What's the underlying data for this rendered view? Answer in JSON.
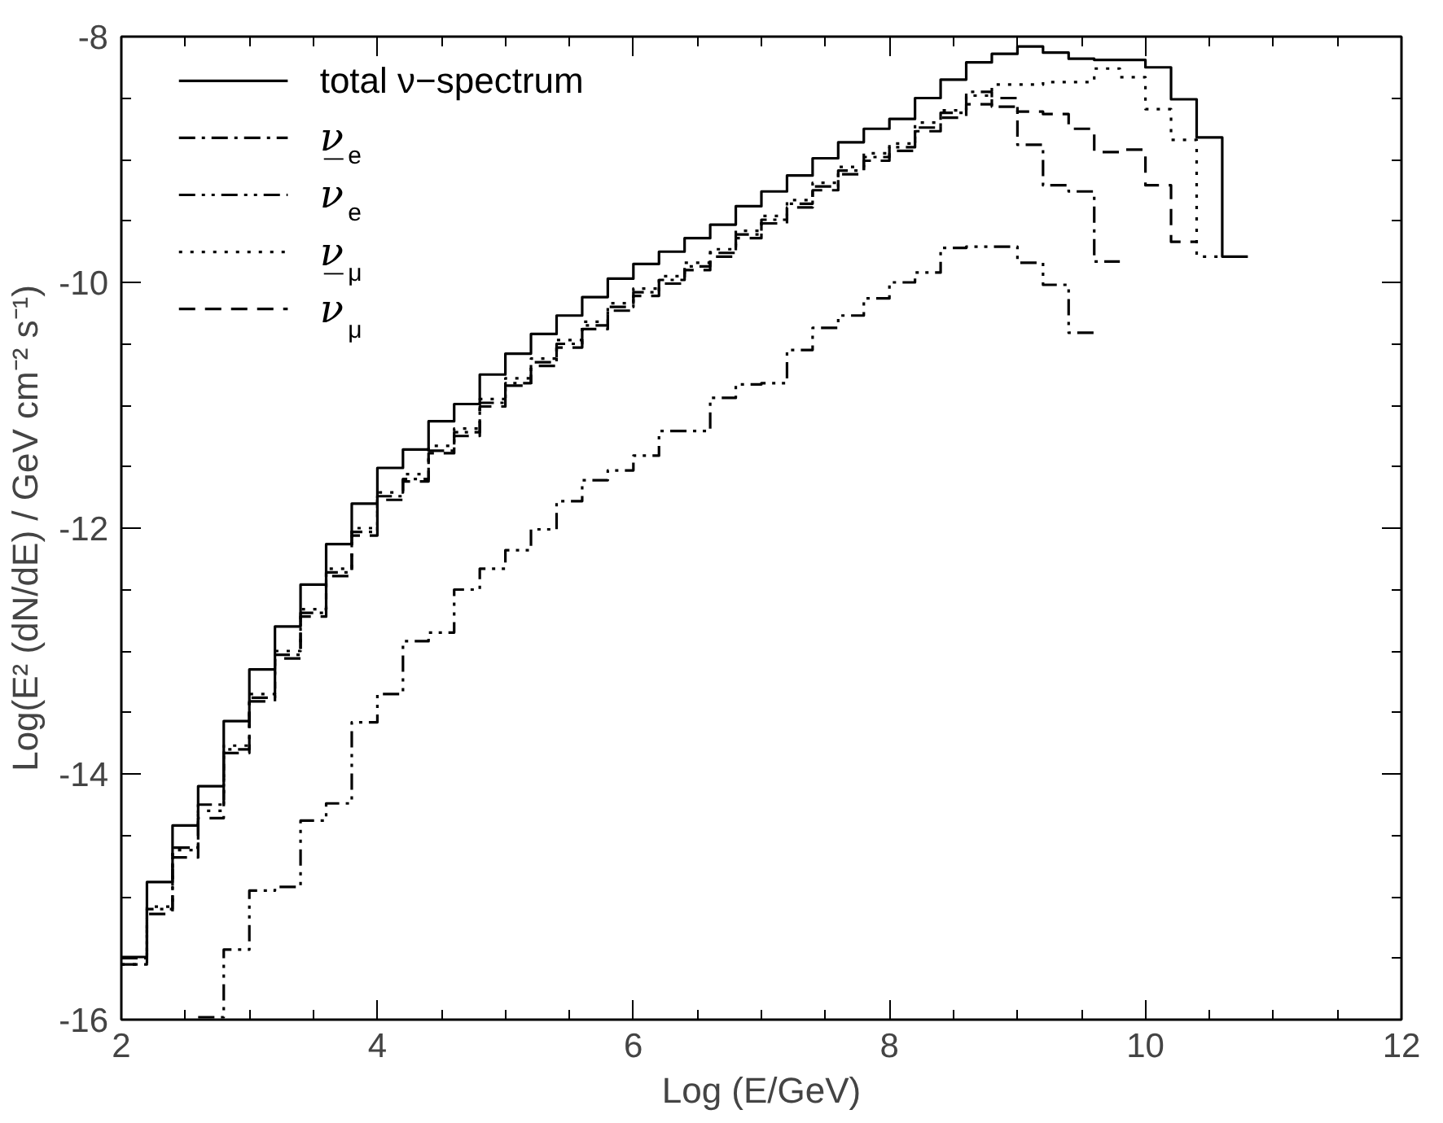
{
  "chart_data": {
    "type": "step",
    "xlabel": "Log (E/GeV)",
    "ylabel": "Log(E² (dN/dE) / GeV cm⁻² s⁻¹)",
    "x": [
      2.0,
      2.2,
      2.4,
      2.6,
      2.8,
      3.0,
      3.2,
      3.4,
      3.6,
      3.8,
      4.0,
      4.2,
      4.4,
      4.6,
      4.8,
      5.0,
      5.2,
      5.4,
      5.6,
      5.8,
      6.0,
      6.2,
      6.4,
      6.6,
      6.8,
      7.0,
      7.2,
      7.4,
      7.6,
      7.8,
      8.0,
      8.2,
      8.4,
      8.6,
      8.8,
      9.0,
      9.2,
      9.4,
      9.6,
      9.8,
      10.0,
      10.2,
      10.4,
      10.6,
      10.8
    ],
    "xlim": [
      2,
      12
    ],
    "ylim": [
      -16,
      -8
    ],
    "xticks": [
      2,
      {
        "value": 2.5,
        "label": null
      },
      {
        "value": 3,
        "label": null
      },
      {
        "value": 3.5,
        "label": null
      },
      4,
      {
        "value": 4.5,
        "label": null
      },
      {
        "value": 5,
        "label": null
      },
      {
        "value": 5.5,
        "label": null
      },
      6,
      {
        "value": 6.5,
        "label": null
      },
      {
        "value": 7,
        "label": null
      },
      {
        "value": 7.5,
        "label": null
      },
      8,
      {
        "value": 8.5,
        "label": null
      },
      {
        "value": 9,
        "label": null
      },
      {
        "value": 9.5,
        "label": null
      },
      10,
      {
        "value": 10.5,
        "label": null
      },
      {
        "value": 11,
        "label": null
      },
      {
        "value": 11.5,
        "label": null
      },
      12
    ],
    "yticks": [
      -16,
      {
        "value": -15.5,
        "label": null
      },
      {
        "value": -15,
        "label": null
      },
      {
        "value": -14.5,
        "label": null
      },
      -14,
      {
        "value": -13.5,
        "label": null
      },
      {
        "value": -13,
        "label": null
      },
      {
        "value": -12.5,
        "label": null
      },
      -12,
      {
        "value": -11.5,
        "label": null
      },
      {
        "value": -11,
        "label": null
      },
      {
        "value": -10.5,
        "label": null
      },
      -10,
      {
        "value": -9.5,
        "label": null
      },
      {
        "value": -9,
        "label": null
      },
      {
        "value": -8.5,
        "label": null
      },
      -8
    ],
    "grid": false,
    "legend": "top left",
    "series": [
      {
        "name": "total ν−spectrum",
        "color": "#000000",
        "line_style": "solid",
        "values": [
          -15.49,
          -14.88,
          -14.42,
          -14.1,
          -13.57,
          -13.15,
          -12.8,
          -12.46,
          -12.13,
          -11.8,
          -11.51,
          -11.36,
          -11.13,
          -10.99,
          -10.75,
          -10.58,
          -10.42,
          -10.27,
          -10.12,
          -9.97,
          -9.85,
          -9.75,
          -9.64,
          -9.53,
          -9.38,
          -9.26,
          -9.13,
          -8.99,
          -8.86,
          -8.75,
          -8.67,
          -8.5,
          -8.35,
          -8.21,
          -8.14,
          -8.08,
          -8.13,
          -8.18,
          -8.19,
          -8.19,
          -8.25,
          -8.51,
          -8.82,
          -9.79,
          -9.79
        ]
      },
      {
        "name": "ν̲$_{e}$",
        "color": "#000000",
        "line_style": "dashdot",
        "values": [
          -15.5,
          -15.1,
          -14.6,
          -14.25,
          -13.8,
          -13.38,
          -13.03,
          -12.69,
          -12.36,
          -12.03,
          -11.74,
          -11.6,
          -11.37,
          -11.22,
          -10.98,
          -10.82,
          -10.65,
          -10.5,
          -10.35,
          -10.2,
          -10.08,
          -9.98,
          -9.87,
          -9.76,
          -9.61,
          -9.49,
          -9.36,
          -9.22,
          -9.09,
          -8.98,
          -8.9,
          -8.74,
          -8.62,
          -8.45,
          -8.57,
          -8.88,
          -9.21,
          -9.26,
          -9.83,
          -9.83,
          null,
          null,
          null,
          null,
          null
        ]
      },
      {
        "name": "ν$_{e}$",
        "color": "#000000",
        "line_style": "dashdotdot",
        "values": [
          null,
          null,
          null,
          -15.98,
          -15.43,
          -14.95,
          -14.92,
          -14.38,
          -14.24,
          -13.58,
          -13.35,
          -12.92,
          -12.85,
          -12.5,
          -12.33,
          -12.18,
          -12.01,
          -11.78,
          -11.61,
          -11.53,
          -11.41,
          -11.21,
          -11.21,
          -10.94,
          -10.83,
          -10.82,
          -10.55,
          -10.37,
          -10.27,
          -10.13,
          -10.0,
          -9.92,
          -9.72,
          -9.71,
          -9.71,
          -9.84,
          -10.02,
          -10.41,
          -10.41,
          null,
          null,
          null,
          null,
          null,
          null
        ]
      },
      {
        "name": "ν̲$_{μ}$",
        "color": "#000000",
        "line_style": "dotted",
        "values": [
          -15.55,
          -15.08,
          -14.62,
          -14.3,
          -13.77,
          -13.35,
          -13.0,
          -12.66,
          -12.33,
          -12.0,
          -11.71,
          -11.56,
          -11.33,
          -11.19,
          -10.95,
          -10.78,
          -10.62,
          -10.47,
          -10.32,
          -10.17,
          -10.05,
          -9.95,
          -9.84,
          -9.73,
          -9.58,
          -9.46,
          -9.33,
          -9.19,
          -9.06,
          -8.95,
          -8.87,
          -8.7,
          -8.6,
          -8.48,
          -8.39,
          -8.39,
          -8.37,
          -8.37,
          -8.26,
          -8.33,
          -8.59,
          -8.84,
          -9.79,
          -9.79,
          null
        ]
      },
      {
        "name": "ν$_{μ}$",
        "color": "#000000",
        "line_style": "dashed",
        "values": [
          -15.55,
          -15.14,
          -14.68,
          -14.36,
          -13.83,
          -13.41,
          -13.06,
          -12.72,
          -12.39,
          -12.06,
          -11.77,
          -11.62,
          -11.39,
          -11.25,
          -11.01,
          -10.84,
          -10.68,
          -10.53,
          -10.38,
          -10.23,
          -10.11,
          -10.01,
          -9.9,
          -9.79,
          -9.64,
          -9.52,
          -9.39,
          -9.25,
          -9.12,
          -9.01,
          -8.93,
          -8.77,
          -8.66,
          -8.55,
          -8.5,
          -8.61,
          -8.63,
          -8.75,
          -8.94,
          -8.92,
          -9.21,
          -9.67,
          -9.67,
          null,
          null
        ]
      }
    ]
  }
}
